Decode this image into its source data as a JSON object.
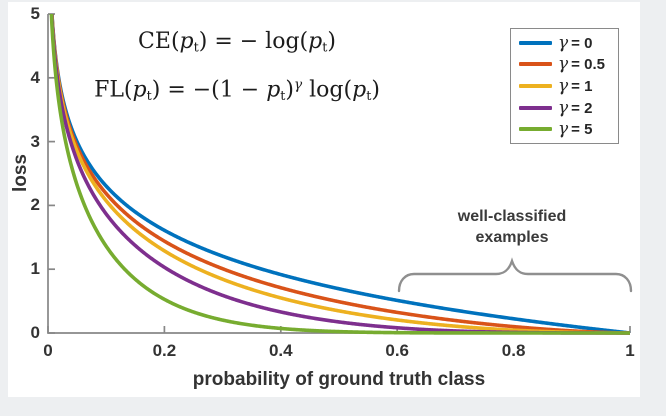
{
  "figure": {
    "background": "#edeff1",
    "panel_background": "#ffffff",
    "axis_color": "#878787",
    "text_color": "#333333",
    "brace_color": "#8f8f8f"
  },
  "equations": {
    "ce_text": "CE(pt) = − log(pt)",
    "fl_text": "FL(pt) = −(1 − pt)^γ log(pt)",
    "ce_tokens": [
      {
        "t": "CE("
      },
      {
        "t": "p",
        "s": "i"
      },
      {
        "t": "t",
        "s": "sub"
      },
      {
        "t": ") = − log("
      },
      {
        "t": "p",
        "s": "i"
      },
      {
        "t": "t",
        "s": "sub"
      },
      {
        "t": ")"
      }
    ],
    "fl_tokens": [
      {
        "t": "FL("
      },
      {
        "t": "p",
        "s": "i"
      },
      {
        "t": "t",
        "s": "sub"
      },
      {
        "t": ") = −(1 − "
      },
      {
        "t": "p",
        "s": "i"
      },
      {
        "t": "t",
        "s": "sub"
      },
      {
        "t": ")"
      },
      {
        "t": "γ",
        "s": "sup-i"
      },
      {
        "t": " log("
      },
      {
        "t": "p",
        "s": "i"
      },
      {
        "t": "t",
        "s": "sub"
      },
      {
        "t": ")"
      }
    ]
  },
  "annotation": {
    "line1": "well-classified",
    "line2": "examples"
  },
  "chart_data": {
    "type": "line",
    "title": "",
    "xlabel": "probability of ground truth class",
    "ylabel": "loss",
    "xlim": [
      0,
      1
    ],
    "ylim": [
      0,
      5
    ],
    "xticks": [
      0,
      0.2,
      0.4,
      0.6,
      0.8,
      1
    ],
    "xtick_labels": [
      "0",
      "0.2",
      "0.4",
      "0.6",
      "0.8",
      "1"
    ],
    "yticks": [
      0,
      1,
      2,
      3,
      4,
      5
    ],
    "ytick_labels": [
      "0",
      "1",
      "2",
      "3",
      "4",
      "5"
    ],
    "grid": false,
    "legend_position": "top-right",
    "formula": "FL(pt) = -(1-pt)^gamma * log(pt); CE(pt) is the gamma = 0 case",
    "sample_x": [
      0.01,
      0.05,
      0.1,
      0.2,
      0.3,
      0.4,
      0.5,
      0.6,
      0.7,
      0.8,
      0.9,
      1.0
    ],
    "series": [
      {
        "name": "gamma-0",
        "label_symbol": "γ",
        "label_value": "= 0",
        "gamma": 0,
        "color": "#0072BD",
        "sample_y": [
          4.605,
          2.996,
          2.303,
          1.609,
          1.204,
          0.916,
          0.693,
          0.511,
          0.357,
          0.223,
          0.105,
          0
        ]
      },
      {
        "name": "gamma-0.5",
        "label_symbol": "γ",
        "label_value": "= 0.5",
        "gamma": 0.5,
        "color": "#D95319",
        "sample_y": [
          4.582,
          2.921,
          2.184,
          1.439,
          1.008,
          0.71,
          0.49,
          0.323,
          0.195,
          0.1,
          0.033,
          0
        ]
      },
      {
        "name": "gamma-1",
        "label_symbol": "γ",
        "label_value": "= 1",
        "gamma": 1,
        "color": "#EDB120",
        "sample_y": [
          4.559,
          2.846,
          2.072,
          1.287,
          0.843,
          0.55,
          0.347,
          0.204,
          0.107,
          0.045,
          0.011,
          0
        ]
      },
      {
        "name": "gamma-2",
        "label_symbol": "γ",
        "label_value": "= 2",
        "gamma": 2,
        "color": "#7E2F8E",
        "sample_y": [
          4.513,
          2.704,
          1.865,
          1.03,
          0.59,
          0.33,
          0.173,
          0.082,
          0.032,
          0.009,
          0.001,
          0
        ]
      },
      {
        "name": "gamma-5",
        "label_symbol": "γ",
        "label_value": "= 5",
        "gamma": 5,
        "color": "#77AC30",
        "sample_y": [
          4.379,
          2.318,
          1.36,
          0.527,
          0.202,
          0.071,
          0.022,
          0.005,
          0.001,
          0,
          0,
          0
        ]
      }
    ]
  }
}
